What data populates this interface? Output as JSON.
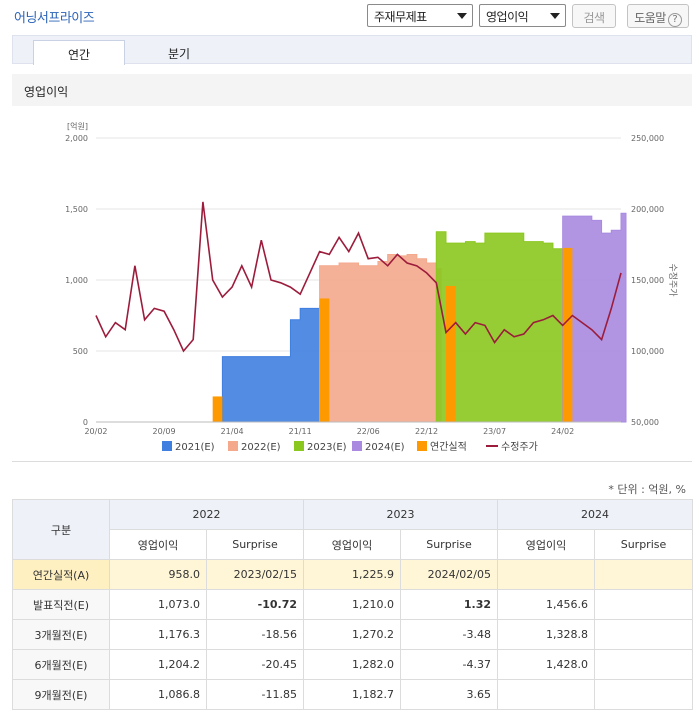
{
  "header": {
    "company": "어닝서프라이즈",
    "select_type": "주재무제표",
    "select_metric": "영업이익",
    "search_label": "검색",
    "help_label": "도움말",
    "help_icon": "question-circle-icon"
  },
  "tabs": [
    {
      "label": "연간"
    },
    {
      "label": "분기"
    }
  ],
  "section_title": "영업이익",
  "unit_note": "* 단위 : 억원, %",
  "colors": {
    "e2021": "#3f7fe0",
    "e2022": "#f4a98c",
    "e2023": "#8bc81f",
    "e2024": "#a98ae0",
    "actual": "#ff9900",
    "price": "#9c1c3c"
  },
  "chart_data": {
    "type": "bar",
    "left_axis_label": "[억원]",
    "right_axis_label": "수정주가",
    "ylim_left": [
      0,
      2000
    ],
    "ylim_right": [
      50000,
      250000
    ],
    "y_ticks_left": [
      "0",
      "500",
      "1,000",
      "1,500",
      "2,000"
    ],
    "y_ticks_right": [
      "50,000",
      "100,000",
      "150,000",
      "200,000",
      "250,000"
    ],
    "x_ticks": [
      "20/02",
      "20/09",
      "21/04",
      "21/11",
      "22/06",
      "22/12",
      "23/07",
      "24/02"
    ],
    "x_range": [
      "2020-02",
      "2024-08"
    ],
    "legend": [
      "2021(E)",
      "2022(E)",
      "2023(E)",
      "2024(E)",
      "연간실적",
      "수정주가"
    ],
    "estimate_series": [
      {
        "name": "2021(E)",
        "points": [
          [
            "2021-03",
            460
          ],
          [
            "2021-07",
            460
          ],
          [
            "2021-10",
            720
          ],
          [
            "2021-11",
            800
          ],
          [
            "2022-01",
            820
          ]
        ]
      },
      {
        "name": "2022(E)",
        "points": [
          [
            "2022-01",
            1100
          ],
          [
            "2022-03",
            1120
          ],
          [
            "2022-05",
            1100
          ],
          [
            "2022-07",
            1130
          ],
          [
            "2022-08",
            1180
          ],
          [
            "2022-09",
            1170
          ],
          [
            "2022-10",
            1180
          ],
          [
            "2022-11",
            1150
          ],
          [
            "2022-12",
            1120
          ],
          [
            "2023-01",
            1080
          ]
        ]
      },
      {
        "name": "2023(E)",
        "points": [
          [
            "2023-01",
            1340
          ],
          [
            "2023-02",
            1260
          ],
          [
            "2023-04",
            1270
          ],
          [
            "2023-05",
            1260
          ],
          [
            "2023-06",
            1330
          ],
          [
            "2023-09",
            1330
          ],
          [
            "2023-10",
            1270
          ],
          [
            "2023-12",
            1260
          ],
          [
            "2024-01",
            1220
          ],
          [
            "2024-02",
            1210
          ]
        ]
      },
      {
        "name": "2024(E)",
        "points": [
          [
            "2024-02",
            1450
          ],
          [
            "2024-05",
            1420
          ],
          [
            "2024-06",
            1330
          ],
          [
            "2024-07",
            1350
          ],
          [
            "2024-08",
            1470
          ]
        ]
      }
    ],
    "actual_results": [
      {
        "name": "연간실적 2020",
        "x_start": "2021-02",
        "x_end": "2021-03",
        "value": 180
      },
      {
        "name": "연간실적 2021",
        "x_start": "2022-01",
        "x_end": "2022-02",
        "value": 870
      },
      {
        "name": "연간실적 2022",
        "x_start": "2023-02",
        "x_end": "2023-03",
        "value": 958.0
      },
      {
        "name": "연간실적 2023",
        "x_start": "2024-02",
        "x_end": "2024-03",
        "value": 1225.9
      }
    ],
    "price_series": {
      "name": "수정주가",
      "points": [
        [
          "2020-02",
          125000
        ],
        [
          "2020-03",
          110000
        ],
        [
          "2020-04",
          120000
        ],
        [
          "2020-05",
          115000
        ],
        [
          "2020-06",
          160000
        ],
        [
          "2020-07",
          122000
        ],
        [
          "2020-08",
          130000
        ],
        [
          "2020-09",
          128000
        ],
        [
          "2020-10",
          115000
        ],
        [
          "2020-11",
          100000
        ],
        [
          "2020-12",
          108000
        ],
        [
          "2021-01",
          205000
        ],
        [
          "2021-02",
          150000
        ],
        [
          "2021-03",
          138000
        ],
        [
          "2021-04",
          145000
        ],
        [
          "2021-05",
          160000
        ],
        [
          "2021-06",
          145000
        ],
        [
          "2021-07",
          178000
        ],
        [
          "2021-08",
          150000
        ],
        [
          "2021-09",
          148000
        ],
        [
          "2021-10",
          145000
        ],
        [
          "2021-11",
          140000
        ],
        [
          "2021-12",
          155000
        ],
        [
          "2022-01",
          170000
        ],
        [
          "2022-02",
          168000
        ],
        [
          "2022-03",
          180000
        ],
        [
          "2022-04",
          170000
        ],
        [
          "2022-05",
          183000
        ],
        [
          "2022-06",
          165000
        ],
        [
          "2022-07",
          166000
        ],
        [
          "2022-08",
          160000
        ],
        [
          "2022-09",
          168000
        ],
        [
          "2022-10",
          162000
        ],
        [
          "2022-11",
          160000
        ],
        [
          "2022-12",
          155000
        ],
        [
          "2023-01",
          148000
        ],
        [
          "2023-02",
          113000
        ],
        [
          "2023-03",
          120000
        ],
        [
          "2023-04",
          112000
        ],
        [
          "2023-05",
          120000
        ],
        [
          "2023-06",
          118000
        ],
        [
          "2023-07",
          106000
        ],
        [
          "2023-08",
          115000
        ],
        [
          "2023-09",
          110000
        ],
        [
          "2023-10",
          112000
        ],
        [
          "2023-11",
          120000
        ],
        [
          "2023-12",
          122000
        ],
        [
          "2024-01",
          125000
        ],
        [
          "2024-02",
          118000
        ],
        [
          "2024-03",
          125000
        ],
        [
          "2024-04",
          120000
        ],
        [
          "2024-05",
          115000
        ],
        [
          "2024-06",
          108000
        ],
        [
          "2024-07",
          130000
        ],
        [
          "2024-08",
          155000
        ]
      ]
    }
  },
  "table": {
    "corner": "구분",
    "years": [
      "2022",
      "2023",
      "2024"
    ],
    "sub_headers": [
      "영업이익",
      "Surprise",
      "영업이익",
      "Surprise",
      "영업이익",
      "Surprise"
    ],
    "rows": [
      {
        "label": "연간실적(A)",
        "cells": [
          "958.0",
          "2023/02/15",
          "1,225.9",
          "2024/02/05",
          "",
          ""
        ]
      },
      {
        "label": "발표직전(E)",
        "cells": [
          "1,073.0",
          "-10.72",
          "1,210.0",
          "1.32",
          "1,456.6",
          ""
        ]
      },
      {
        "label": "3개월전(E)",
        "cells": [
          "1,176.3",
          "-18.56",
          "1,270.2",
          "-3.48",
          "1,328.8",
          ""
        ]
      },
      {
        "label": "6개월전(E)",
        "cells": [
          "1,204.2",
          "-20.45",
          "1,282.0",
          "-4.37",
          "1,428.0",
          ""
        ]
      },
      {
        "label": "9개월전(E)",
        "cells": [
          "1,086.8",
          "-11.85",
          "1,182.7",
          "3.65",
          "",
          ""
        ]
      }
    ]
  }
}
